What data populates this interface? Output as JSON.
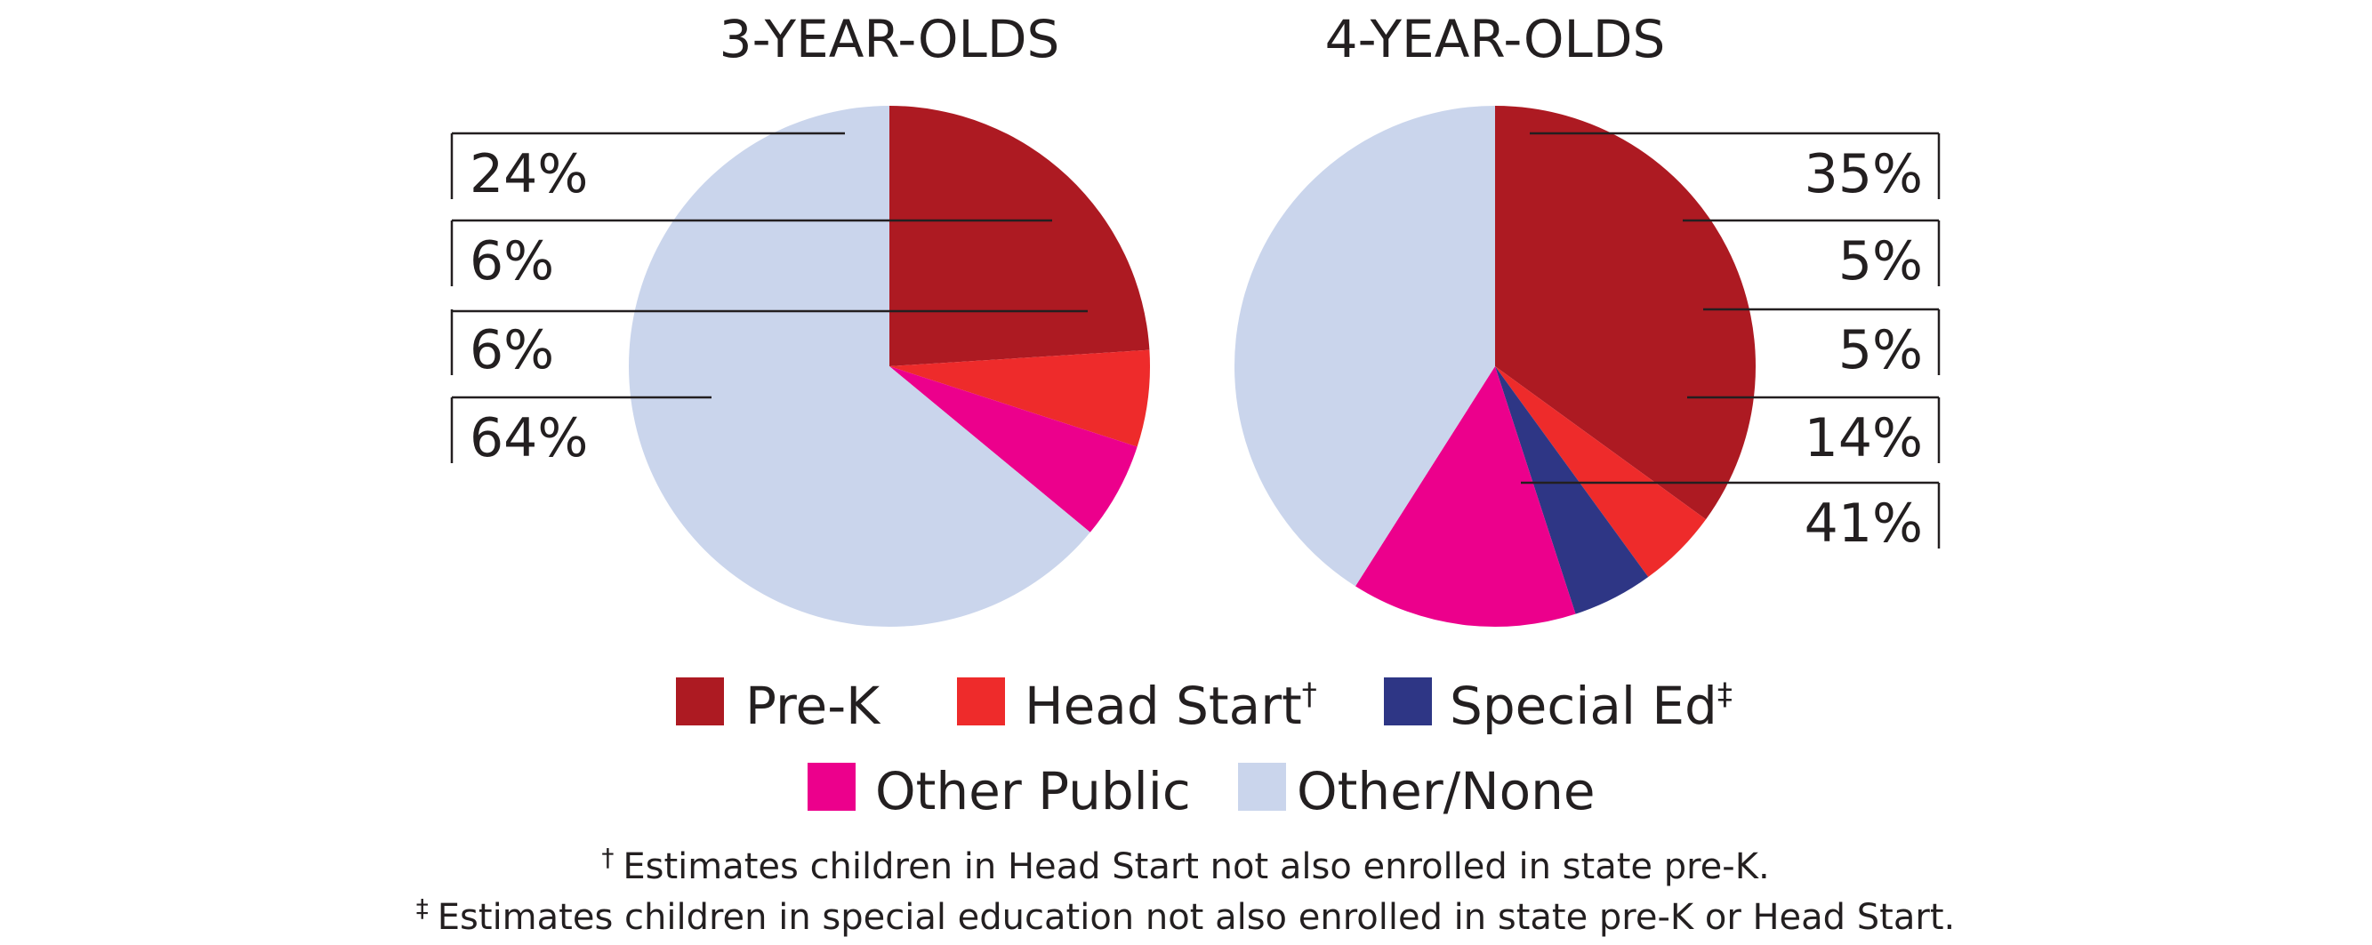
{
  "chart_data": [
    {
      "type": "pie",
      "title": "3-YEAR-OLDS",
      "slices": [
        {
          "name": "Pre-K",
          "value": 24,
          "label": "24%",
          "color": "#ad1a22"
        },
        {
          "name": "Head Start",
          "value": 6,
          "label": "6%",
          "color": "#ee2b2b"
        },
        {
          "name": "Other Public",
          "value": 6,
          "label": "6%",
          "color": "#ec008c"
        },
        {
          "name": "Other/None",
          "value": 64,
          "label": "64%",
          "color": "#cad5ec"
        }
      ]
    },
    {
      "type": "pie",
      "title": "4-YEAR-OLDS",
      "slices": [
        {
          "name": "Pre-K",
          "value": 35,
          "label": "35%",
          "color": "#ad1a22"
        },
        {
          "name": "Head Start",
          "value": 5,
          "label": "5%",
          "color": "#ee2b2b"
        },
        {
          "name": "Special Ed",
          "value": 5,
          "label": "5%",
          "color": "#2e3685"
        },
        {
          "name": "Other Public",
          "value": 14,
          "label": "14%",
          "color": "#ec008c"
        },
        {
          "name": "Other/None",
          "value": 41,
          "label": "41%",
          "color": "#cad5ec"
        }
      ]
    }
  ],
  "legend": [
    {
      "name": "Pre-K",
      "mark": "",
      "color": "#ad1a22"
    },
    {
      "name": "Head Start",
      "mark": "†",
      "color": "#ee2b2b"
    },
    {
      "name": "Special Ed",
      "mark": "‡",
      "color": "#2e3685"
    },
    {
      "name": "Other Public",
      "mark": "",
      "color": "#ec008c"
    },
    {
      "name": "Other/None",
      "mark": "",
      "color": "#cad5ec"
    }
  ],
  "footnotes": [
    {
      "mark": "†",
      "text": "Estimates children in Head Start not also enrolled in state pre-K."
    },
    {
      "mark": "‡",
      "text": "Estimates children in special education not also enrolled in state pre-K or Head Start."
    }
  ]
}
